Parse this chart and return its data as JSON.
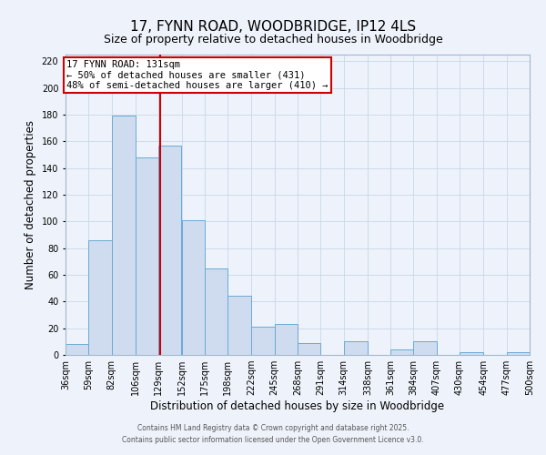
{
  "title": "17, FYNN ROAD, WOODBRIDGE, IP12 4LS",
  "subtitle": "Size of property relative to detached houses in Woodbridge",
  "xlabel": "Distribution of detached houses by size in Woodbridge",
  "ylabel": "Number of detached properties",
  "bar_edges": [
    36,
    59,
    82,
    106,
    129,
    152,
    175,
    198,
    222,
    245,
    268,
    291,
    314,
    338,
    361,
    384,
    407,
    430,
    454,
    477,
    500
  ],
  "bar_values": [
    8,
    86,
    179,
    148,
    157,
    101,
    65,
    44,
    21,
    23,
    9,
    0,
    10,
    0,
    4,
    10,
    0,
    2,
    0,
    2
  ],
  "bar_color": "#cfdcef",
  "bar_edge_color": "#6aaad4",
  "reference_line_x": 131,
  "reference_line_color": "#cc0000",
  "ylim": [
    0,
    225
  ],
  "yticks": [
    0,
    20,
    40,
    60,
    80,
    100,
    120,
    140,
    160,
    180,
    200,
    220
  ],
  "background_color": "#eef2fa",
  "grid_color": "#c8d8ea",
  "annotation_title": "17 FYNN ROAD: 131sqm",
  "annotation_line1": "← 50% of detached houses are smaller (431)",
  "annotation_line2": "48% of semi-detached houses are larger (410) →",
  "footer1": "Contains HM Land Registry data © Crown copyright and database right 2025.",
  "footer2": "Contains public sector information licensed under the Open Government Licence v3.0.",
  "title_fontsize": 11,
  "subtitle_fontsize": 9,
  "axis_label_fontsize": 8.5,
  "tick_fontsize": 7,
  "annotation_fontsize": 7.5
}
